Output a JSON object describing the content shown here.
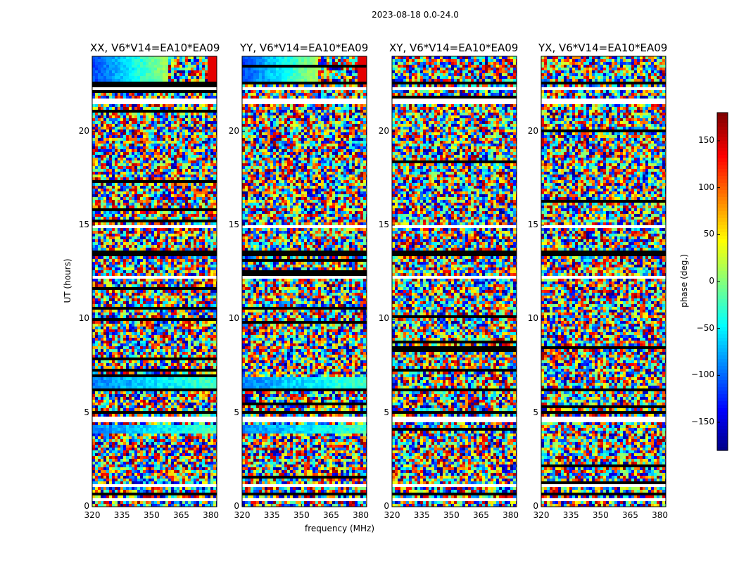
{
  "figure": {
    "suptitle": "2023-08-18 0.0-24.0",
    "xlabel": "frequency (MHz)",
    "ylabel": "UT (hours)",
    "colorbar_label": "phase (deg.)",
    "colorbar_ticks": [
      150,
      100,
      50,
      0,
      -50,
      -100,
      -150
    ],
    "colorbar_tick_labels": [
      "150",
      "100",
      "50",
      "0",
      "−50",
      "−100",
      "−150"
    ],
    "colormap": "jet",
    "colormap_stops": [
      "#00007f",
      "#0000ff",
      "#00ffff",
      "#7fff7f",
      "#ffff00",
      "#ff0000",
      "#7f0000"
    ]
  },
  "chart_data": [
    {
      "type": "heatmap",
      "title": "XX, V6*V14=EA10*EA09",
      "xlim": [
        320,
        383
      ],
      "ylim": [
        0,
        24
      ],
      "xticks": [
        320,
        335,
        350,
        365,
        380
      ],
      "yticks": [
        0,
        5,
        10,
        15,
        20
      ],
      "value_range": [
        -180,
        180
      ],
      "z": "phase (deg.)"
    },
    {
      "type": "heatmap",
      "title": "YY, V6*V14=EA10*EA09",
      "xlim": [
        320,
        383
      ],
      "ylim": [
        0,
        24
      ],
      "xticks": [
        320,
        335,
        350,
        365,
        380
      ],
      "yticks": [
        0,
        5,
        10,
        15,
        20
      ],
      "value_range": [
        -180,
        180
      ],
      "z": "phase (deg.)"
    },
    {
      "type": "heatmap",
      "title": "XY, V6*V14=EA10*EA09",
      "xlim": [
        320,
        383
      ],
      "ylim": [
        0,
        24
      ],
      "xticks": [
        320,
        335,
        350,
        365,
        380
      ],
      "yticks": [
        0,
        5,
        10,
        15,
        20
      ],
      "value_range": [
        -180,
        180
      ],
      "z": "phase (deg.)"
    },
    {
      "type": "heatmap",
      "title": "YX, V6*V14=EA10*EA09",
      "xlim": [
        320,
        383
      ],
      "ylim": [
        0,
        24
      ],
      "xticks": [
        320,
        335,
        350,
        365,
        380
      ],
      "yticks": [
        0,
        5,
        10,
        15,
        20
      ],
      "value_range": [
        -180,
        180
      ],
      "z": "phase (deg.)"
    }
  ]
}
